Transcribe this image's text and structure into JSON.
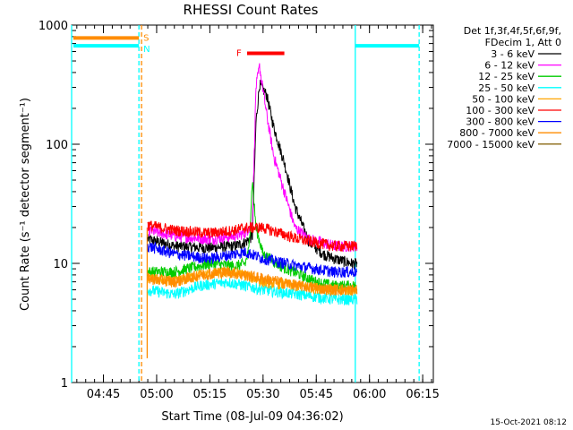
{
  "chart_data": {
    "type": "line",
    "title": "RHESSI Count Rates",
    "xlabel": "Start Time (08-Jul-09 04:36:02)",
    "ylabel": "Count Rate (s⁻¹ detector segment⁻¹)",
    "x_ticks": [
      "04:45",
      "05:00",
      "05:15",
      "05:30",
      "05:45",
      "06:00",
      "06:15"
    ],
    "y_ticks": [
      "1",
      "10",
      "100",
      "1000"
    ],
    "y_scale": "log",
    "xlim": [
      "04:36:02",
      "06:18:00"
    ],
    "ylim": [
      1,
      1000
    ],
    "grid": false,
    "legend_placement": "right",
    "legend_header": [
      "Det 1f,3f,4f,5f,6f,9f,",
      "FDecim 1, Att 0"
    ],
    "footer_date": "15-Oct-2021 08:12",
    "series": [
      {
        "name": "3 - 6 keV",
        "color": "#000000",
        "x": [
          "04:57:30",
          "05:05",
          "05:15",
          "05:22",
          "05:25",
          "05:27",
          "05:28",
          "05:29",
          "05:31",
          "05:33",
          "05:36",
          "05:39",
          "05:43",
          "05:47",
          "05:50",
          "05:55",
          "05:56:30"
        ],
        "y": [
          16,
          14,
          13.5,
          14,
          15,
          17,
          150,
          320,
          260,
          140,
          70,
          30,
          15,
          12,
          11,
          10,
          10
        ]
      },
      {
        "name": "6 - 12 keV",
        "color": "#ff00ff",
        "x": [
          "04:57:30",
          "05:05",
          "05:15",
          "05:22",
          "05:25",
          "05:27",
          "05:28",
          "05:29",
          "05:31",
          "05:33",
          "05:36",
          "05:39",
          "05:43",
          "05:47",
          "05:50",
          "05:55",
          "05:56:30"
        ],
        "y": [
          19,
          17,
          16,
          17,
          18,
          22,
          300,
          450,
          180,
          80,
          40,
          20,
          16,
          15,
          14,
          14,
          14
        ]
      },
      {
        "name": "12 - 25 keV",
        "color": "#00cc00",
        "x": [
          "04:57:30",
          "05:05",
          "05:15",
          "05:22",
          "05:25",
          "05:26",
          "05:27",
          "05:28",
          "05:30",
          "05:35",
          "05:45",
          "05:50",
          "05:56:30"
        ],
        "y": [
          8.5,
          8.5,
          10,
          9.5,
          10,
          13,
          50,
          20,
          12,
          9.5,
          7,
          6.5,
          6.5
        ]
      },
      {
        "name": "25 - 50 keV",
        "color": "#00ffff",
        "x": [
          "04:57:30",
          "05:05",
          "05:12",
          "05:20",
          "05:25",
          "05:30",
          "05:40",
          "05:50",
          "05:56:30"
        ],
        "y": [
          6,
          5.5,
          6.5,
          7,
          6.5,
          6,
          5.5,
          5,
          5
        ]
      },
      {
        "name": "50 - 100 keV",
        "color": "#ffa500",
        "x": [
          "04:57:30",
          "05:05",
          "05:12",
          "05:20",
          "05:25",
          "05:30",
          "05:40",
          "05:50",
          "05:56:30"
        ],
        "y": [
          7.5,
          7,
          8,
          8.5,
          8,
          7,
          6.5,
          6,
          6
        ]
      },
      {
        "name": "100 - 300 keV",
        "color": "#ff0000",
        "x": [
          "04:57:30",
          "05:05",
          "05:15",
          "05:22",
          "05:25",
          "05:30",
          "05:40",
          "05:50",
          "05:56:30"
        ],
        "y": [
          21,
          19,
          18,
          19,
          20,
          20,
          16,
          14,
          14
        ]
      },
      {
        "name": "300 - 800 keV",
        "color": "#0000ff",
        "x": [
          "04:57:30",
          "05:05",
          "05:15",
          "05:22",
          "05:25",
          "05:30",
          "05:40",
          "05:50",
          "05:56:30"
        ],
        "y": [
          14,
          12,
          11,
          12,
          12.5,
          11,
          9.5,
          8.5,
          8.5
        ]
      },
      {
        "name": "800 - 7000 keV",
        "color": "#ff8c00",
        "x": [
          "04:57:30",
          "05:05",
          "05:12",
          "05:20",
          "05:25",
          "05:30",
          "05:40",
          "05:50",
          "05:56:30"
        ],
        "y": [
          7.5,
          7,
          8,
          8.5,
          8,
          7.5,
          6.5,
          6,
          6
        ]
      },
      {
        "name": "7000 - 15000 keV",
        "color": "#8b6914",
        "x": [],
        "y": []
      }
    ],
    "attenuator_bars": [
      {
        "label": "S",
        "start": "04:36:02",
        "end": "04:55:00",
        "value": 780,
        "color": "#ff8c00"
      },
      {
        "label": "N",
        "start": "04:36:02",
        "end": "04:55:00",
        "value": 670,
        "color": "#00ffff"
      },
      {
        "label": "",
        "start": "05:56:00",
        "end": "06:14:00",
        "value": 670,
        "color": "#00ffff"
      },
      {
        "label": "F",
        "start": "05:25:30",
        "end": "05:36:00",
        "value": 580,
        "color": "#ff0000"
      }
    ],
    "vlines": [
      {
        "time": "04:36:02",
        "color": "#00ffff",
        "style": "solid"
      },
      {
        "time": "04:55:00",
        "color": "#00ffff",
        "style": "dashed"
      },
      {
        "time": "04:55:45",
        "color": "#ff8c00",
        "style": "dashed"
      },
      {
        "time": "04:57:20",
        "color": "#ff8c00",
        "style": "solid"
      },
      {
        "time": "05:56:00",
        "color": "#00ffff",
        "style": "solid"
      },
      {
        "time": "06:14:00",
        "color": "#00ffff",
        "style": "dashed"
      }
    ]
  }
}
